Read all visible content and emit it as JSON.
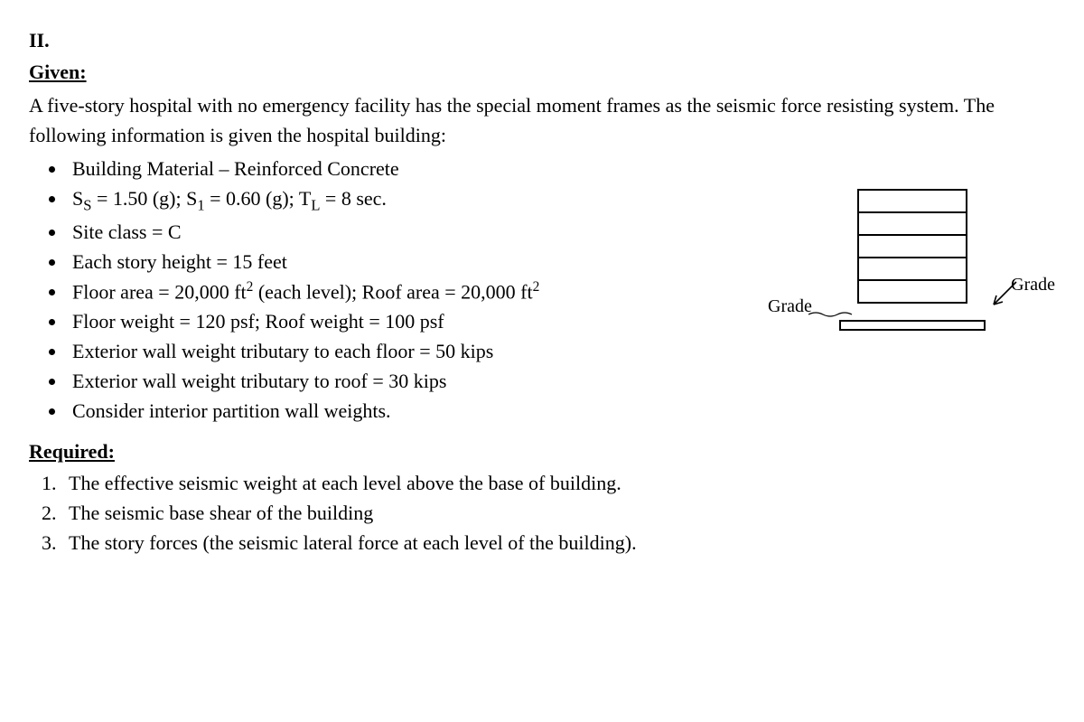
{
  "section_number": "II.",
  "given_heading": "Given:",
  "intro_text": "A five-story hospital with no emergency facility has the special moment frames as the seismic force resisting system. The following information is given the hospital building:",
  "bullets": {
    "b1": "Building Material – Reinforced Concrete",
    "b2_html": "S<sub>S</sub> = 1.50 (g); S<sub>1</sub> = 0.60 (g); T<sub>L</sub> = 8 sec.",
    "b3": "Site class = C",
    "b4": "Each story height = 15 feet",
    "b5_html": "Floor area = 20,000 ft<sup>2</sup> (each level); Roof area = 20,000 ft<sup>2</sup>",
    "b6": "Floor weight = 120 psf; Roof weight = 100 psf",
    "b7": "Exterior wall weight tributary to each floor = 50 kips",
    "b8": "Exterior wall weight tributary to roof = 30 kips",
    "b9": "Consider interior partition wall weights."
  },
  "required_heading": "Required:",
  "required_items": {
    "r1": "The effective seismic weight at each level above the base of building.",
    "r2": "The seismic base shear of the building",
    "r3": "The story forces (the seismic lateral force at each level of the building)."
  },
  "diagram": {
    "label_left": "Grade",
    "label_right": "Grade",
    "stories": 5,
    "stroke": "#000000",
    "stroke_width": 2
  },
  "style": {
    "font_family": "Times New Roman",
    "font_size_pt": 16,
    "color_text": "#000000",
    "background": "#ffffff"
  }
}
